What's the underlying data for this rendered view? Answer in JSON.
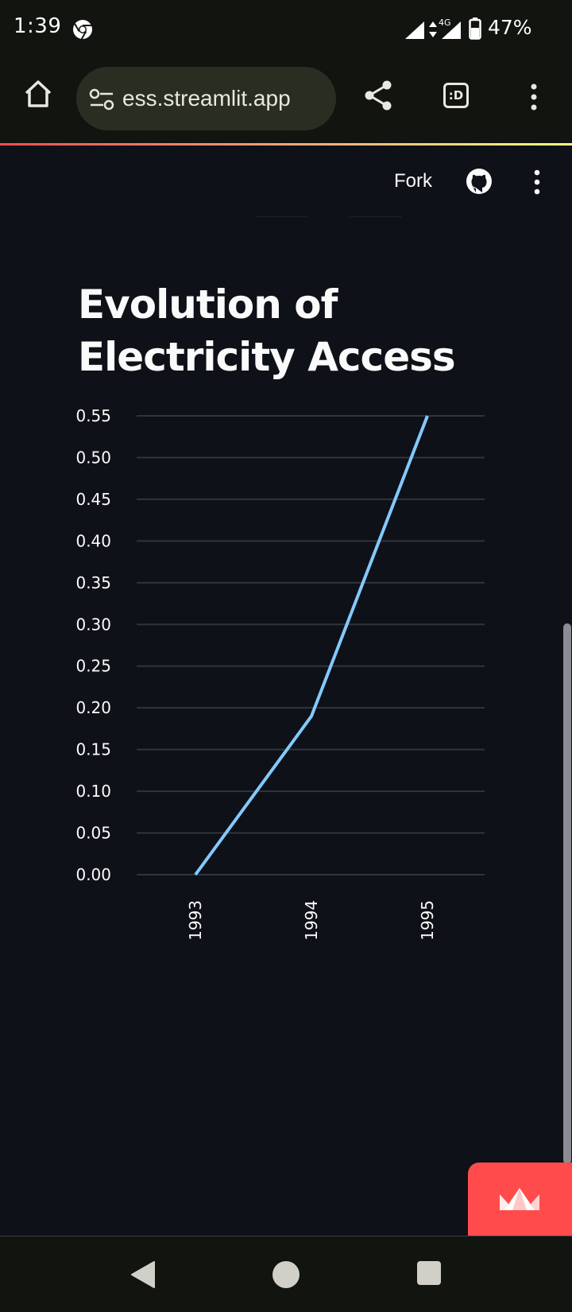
{
  "status_bar": {
    "time": "1:39",
    "network": "4G",
    "battery": "47%",
    "icons": [
      "chrome-icon",
      "signal-icon",
      "data-arrows-icon",
      "signal-icon",
      "battery-icon"
    ]
  },
  "browser": {
    "url": "ess.streamlit.app",
    "tab_switcher_label": ":D",
    "icons": [
      "home-icon",
      "site-settings-icon",
      "share-icon",
      "kebab-menu-icon"
    ]
  },
  "app_header": {
    "fork_label": "Fork",
    "icons": [
      "github-icon",
      "kebab-menu-icon"
    ]
  },
  "page": {
    "title": "Evolution of Electricity Access"
  },
  "chart_data": {
    "type": "line",
    "title": "",
    "xlabel": "",
    "ylabel": "",
    "x": [
      "1993",
      "1994",
      "1995"
    ],
    "series": [
      {
        "values": [
          0.0,
          0.19,
          0.55
        ]
      }
    ],
    "y_ticks": [
      "0.00",
      "0.05",
      "0.10",
      "0.15",
      "0.20",
      "0.25",
      "0.30",
      "0.35",
      "0.40",
      "0.45",
      "0.50",
      "0.55"
    ],
    "ylim": [
      0,
      0.55
    ],
    "grid": true,
    "line_color": "#83c9ff",
    "grid_color": "#31333f"
  },
  "badge": {
    "icon": "streamlit-crown-icon",
    "color": "#ff4b4b"
  },
  "nav_bar": {
    "icons": [
      "back-icon",
      "home-circle-icon",
      "recents-icon"
    ]
  }
}
